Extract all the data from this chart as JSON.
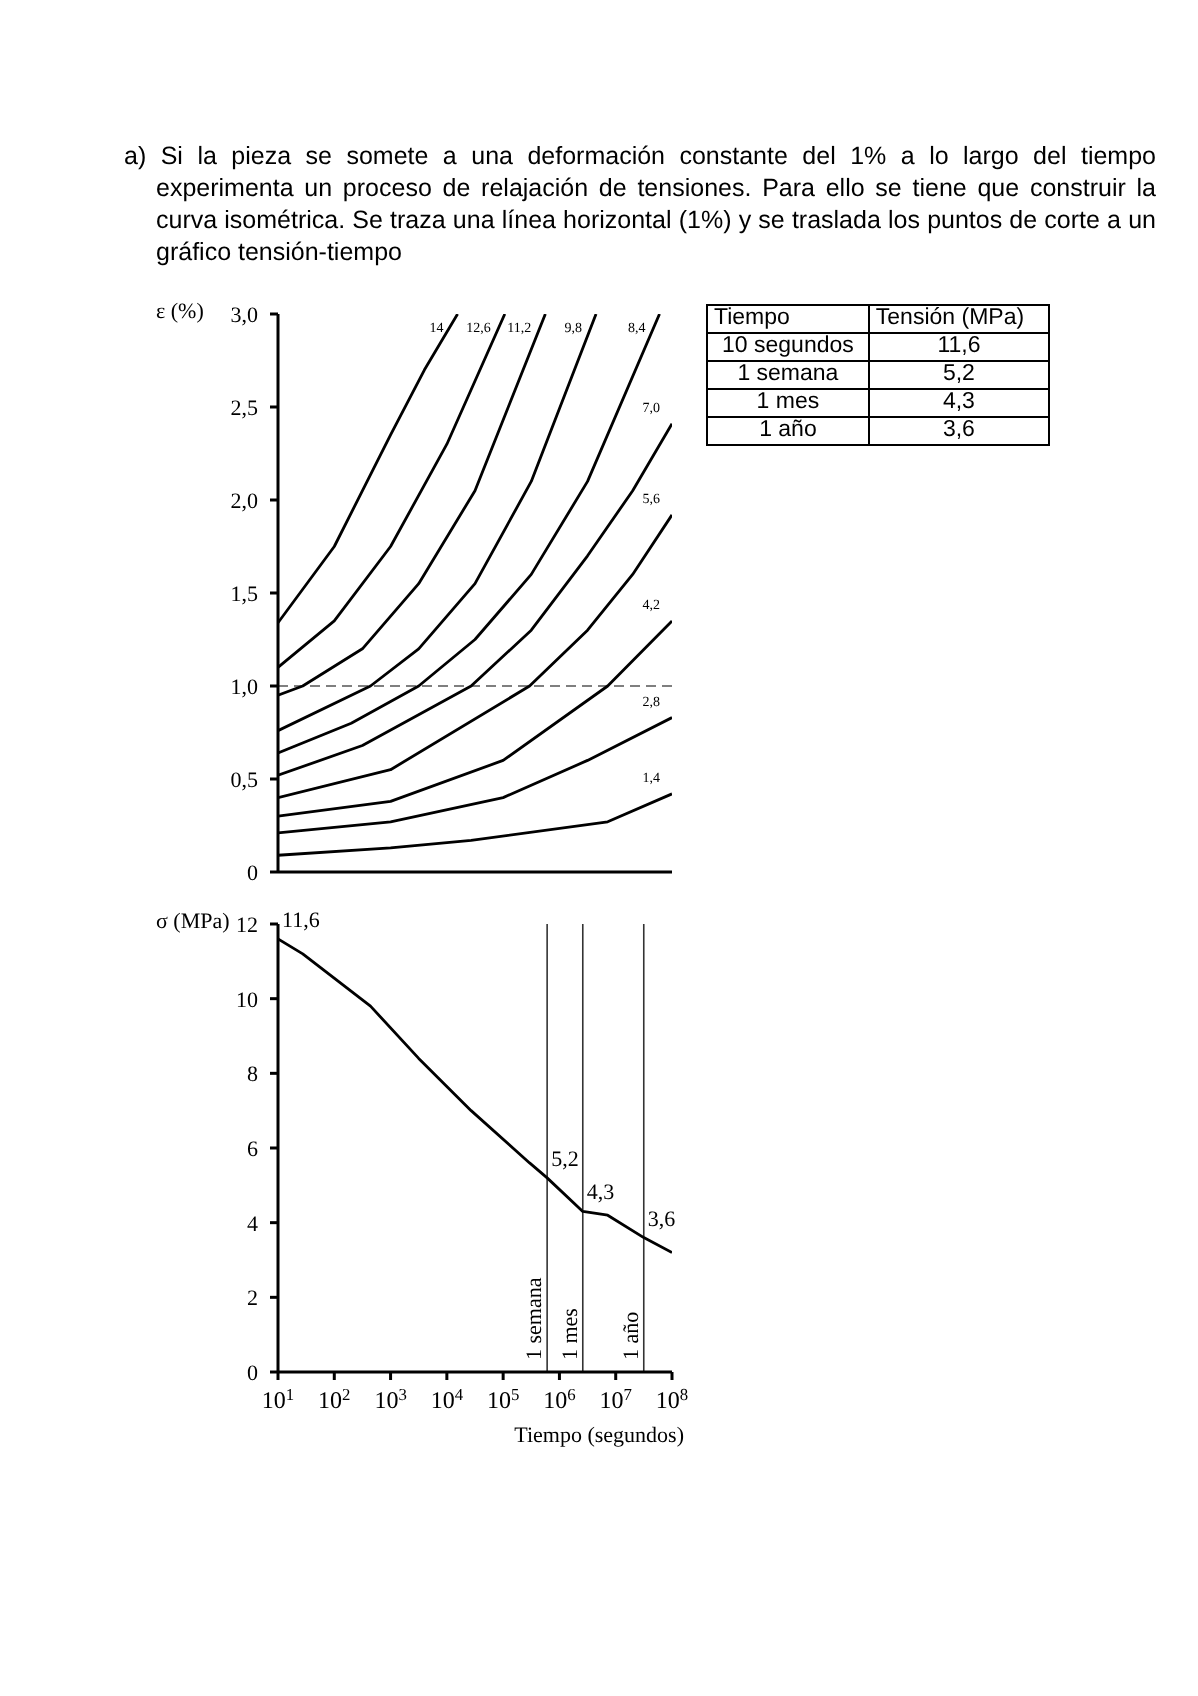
{
  "chart_data": [
    {
      "type": "line",
      "title": "a) Si la pieza se somete a una deformación constante del 1% a lo largo del tiempo experimenta un proceso de relajación de tensiones. Para ello se tiene que construir la curva isométrica. Se traza una línea horizontal (1%) y se traslada los puntos de corte a un gráfico tensión-tiempo",
      "ylabel": "ε (%)",
      "log": "x",
      "xlim": [
        10,
        100000000
      ],
      "ylim": [
        0,
        3
      ],
      "yticks": [
        0,
        {
          "value": 0.5,
          "label": "0,5"
        },
        {
          "value": 1,
          "label": "1,0"
        },
        {
          "value": 1.5,
          "label": "1,5"
        },
        {
          "value": 2,
          "label": "2,0"
        },
        {
          "value": 2.5,
          "label": "2,5"
        },
        {
          "value": 3,
          "label": "3,0"
        }
      ],
      "tick_labels": "y",
      "marker": "none",
      "line_style": "solid",
      "ref_lines": [
        {
          "axis": "y",
          "value": 1,
          "line_style": "dashed",
          "color": "#555555"
        }
      ],
      "series": [
        {
          "name": "1,4",
          "color": "#000000",
          "x": [
            10,
            1000,
            27000,
            7200000,
            100000000
          ],
          "values": [
            0.09,
            0.13,
            0.17,
            0.27,
            0.42
          ]
        },
        {
          "name": "2,8",
          "color": "#000000",
          "x": [
            10,
            1000,
            100000,
            3160000,
            100000000
          ],
          "values": [
            0.21,
            0.27,
            0.4,
            0.6,
            0.83
          ]
        },
        {
          "name": "4,2",
          "color": "#000000",
          "x": [
            10,
            1000,
            100000,
            7200000,
            100000000
          ],
          "values": [
            0.3,
            0.38,
            0.6,
            1.0,
            1.35
          ]
        },
        {
          "name": "5,6",
          "color": "#000000",
          "x": [
            10,
            1000,
            295000,
            3160000,
            20000000,
            100000000
          ],
          "values": [
            0.4,
            0.55,
            1.0,
            1.3,
            1.6,
            1.92
          ]
        },
        {
          "name": "7,0",
          "color": "#000000",
          "x": [
            10,
            316,
            27000,
            316000,
            3160000,
            20000000,
            100000000
          ],
          "values": [
            0.52,
            0.68,
            1.0,
            1.3,
            1.7,
            2.05,
            2.41
          ]
        },
        {
          "name": "8,4",
          "color": "#000000",
          "x": [
            10,
            200,
            3160,
            31600,
            316000,
            3160000,
            60000000
          ],
          "values": [
            0.64,
            0.8,
            1.0,
            1.25,
            1.6,
            2.1,
            3.0
          ]
        },
        {
          "name": "9,8",
          "color": "#000000",
          "x": [
            10,
            440,
            3160,
            31600,
            316000,
            4470000
          ],
          "values": [
            0.76,
            1.0,
            1.2,
            1.55,
            2.1,
            3.0
          ]
        },
        {
          "name": "11,2",
          "color": "#000000",
          "x": [
            10,
            27.5,
            316,
            3160,
            31600,
            562000
          ],
          "values": [
            0.95,
            1.0,
            1.2,
            1.55,
            2.05,
            3.0
          ]
        },
        {
          "name": "12,6",
          "color": "#000000",
          "x": [
            10,
            100,
            1000,
            10000,
            107000
          ],
          "values": [
            1.1,
            1.35,
            1.75,
            2.3,
            3.0
          ]
        },
        {
          "name": "14",
          "color": "#000000",
          "x": [
            10,
            100,
            1000,
            4000,
            15500
          ],
          "values": [
            1.34,
            1.75,
            2.35,
            2.7,
            3.0
          ]
        }
      ]
    },
    {
      "type": "line",
      "xlabel": "Tiempo (segundos)",
      "ylabel": "σ (MPa)",
      "log": "x",
      "xlim": [
        10,
        100000000
      ],
      "ylim": [
        0,
        12
      ],
      "xticks": [
        {
          "value": 10,
          "label": "10$^{1}$"
        },
        {
          "value": 100,
          "label": "10$^{2}$"
        },
        {
          "value": 1000,
          "label": "10$^{3}$"
        },
        {
          "value": 10000,
          "label": "10$^{4}$"
        },
        {
          "value": 100000,
          "label": "10$^{5}$"
        },
        {
          "value": 1000000,
          "label": "10$^{6}$"
        },
        {
          "value": 10000000,
          "label": "10$^{7}$"
        },
        {
          "value": 100000000,
          "label": "10$^{8}$"
        }
      ],
      "yticks": [
        0,
        2,
        4,
        6,
        8,
        10,
        12
      ],
      "marker": "none",
      "line_style": "solid",
      "ref_lines": [
        {
          "axis": "x",
          "value": 604800,
          "label": "1 semana",
          "color": "#333333"
        },
        {
          "axis": "x",
          "value": 2600000,
          "label": "1 mes",
          "color": "#333333"
        },
        {
          "axis": "x",
          "value": 31500000,
          "label": "1 año",
          "color": "#333333"
        }
      ],
      "series": [
        {
          "color": "#000000",
          "x": [
            10,
            27.5,
            440,
            3160,
            27000,
            295000,
            604800,
            2600000,
            7200000,
            31500000,
            100000000
          ],
          "values": [
            11.6,
            11.2,
            9.8,
            8.4,
            7.0,
            5.6,
            5.2,
            4.3,
            4.2,
            3.6,
            3.2
          ],
          "value_labels": [
            "11,6",
            null,
            null,
            null,
            null,
            null,
            "5,2",
            "4,3",
            null,
            "3,6",
            null
          ]
        }
      ]
    },
    {
      "type": "other",
      "xlabel": "Tiempo",
      "ylabel": "Tensión (MPa)",
      "categories": [
        "10 segundos",
        "1 semana",
        "1 mes",
        "1 año"
      ],
      "value_labels": [
        "11,6",
        "5,2",
        "4,3",
        "3,6"
      ]
    }
  ]
}
